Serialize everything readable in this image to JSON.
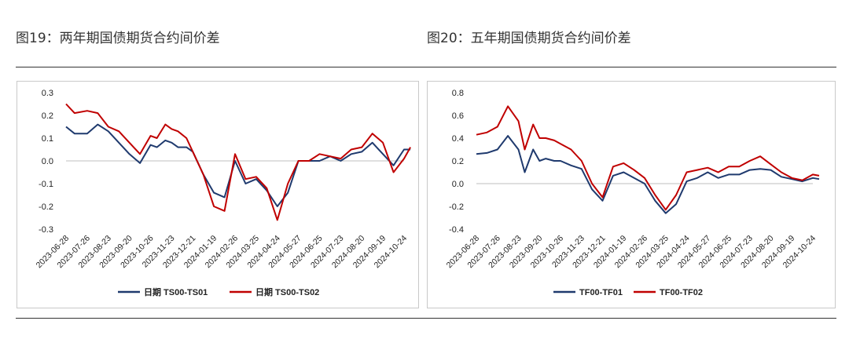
{
  "titles": {
    "left": "图19：两年期国债期货合约间价差",
    "right": "图20：五年期国债期货合约间价差"
  },
  "chart_data": [
    {
      "type": "line",
      "title": "图19：两年期国债期货合约间价差",
      "x_ticks": [
        "2023-06-28",
        "2023-07-26",
        "2023-08-23",
        "2023-09-20",
        "2023-10-26",
        "2023-11-23",
        "2023-12-21",
        "2024-01-19",
        "2024-02-26",
        "2024-03-25",
        "2024-04-24",
        "2024-05-27",
        "2024-06-25",
        "2024-07-23",
        "2024-08-20",
        "2024-09-19",
        "2024-10-24"
      ],
      "y_ticks": [
        "0.3",
        "0.2",
        "0.1",
        "0.0",
        "-0.1",
        "-0.2",
        "-0.3"
      ],
      "ylim": [
        -0.3,
        0.3
      ],
      "grid": false,
      "legend_position": "bottom",
      "series": [
        {
          "name": "日期 TS00-TS01",
          "color": "#1f3a6e",
          "x": [
            0,
            0.4,
            1,
            1.5,
            2,
            2.5,
            3,
            3.5,
            4,
            4.3,
            4.7,
            5,
            5.3,
            5.7,
            6,
            6.5,
            7,
            7.5,
            8,
            8.5,
            9,
            9.5,
            10,
            10.5,
            11,
            11.5,
            12,
            12.5,
            13,
            13.5,
            14,
            14.5,
            15,
            15.5,
            16,
            16.3
          ],
          "y": [
            0.15,
            0.12,
            0.12,
            0.16,
            0.13,
            0.08,
            0.03,
            -0.01,
            0.07,
            0.06,
            0.09,
            0.08,
            0.06,
            0.06,
            0.04,
            -0.06,
            -0.14,
            -0.16,
            0.0,
            -0.1,
            -0.08,
            -0.13,
            -0.2,
            -0.14,
            0.0,
            0.0,
            0.0,
            0.02,
            0.0,
            0.03,
            0.04,
            0.08,
            0.03,
            -0.02,
            0.05,
            0.05
          ]
        },
        {
          "name": "日期 TS00-TS02",
          "color": "#c00000",
          "x": [
            0,
            0.4,
            1,
            1.5,
            2,
            2.5,
            3,
            3.5,
            4,
            4.3,
            4.7,
            5,
            5.3,
            5.7,
            6,
            6.5,
            7,
            7.5,
            8,
            8.5,
            9,
            9.5,
            10,
            10.5,
            11,
            11.5,
            12,
            12.5,
            13,
            13.5,
            14,
            14.5,
            15,
            15.5,
            16,
            16.3
          ],
          "y": [
            0.25,
            0.21,
            0.22,
            0.21,
            0.15,
            0.13,
            0.08,
            0.03,
            0.11,
            0.1,
            0.16,
            0.14,
            0.13,
            0.1,
            0.04,
            -0.06,
            -0.2,
            -0.22,
            0.03,
            -0.08,
            -0.07,
            -0.12,
            -0.26,
            -0.1,
            0.0,
            0.0,
            0.03,
            0.02,
            0.01,
            0.05,
            0.06,
            0.12,
            0.08,
            -0.05,
            0.01,
            0.06
          ]
        }
      ]
    },
    {
      "type": "line",
      "title": "图20：五年期国债期货合约间价差",
      "x_ticks": [
        "2023-06-28",
        "2023-07-26",
        "2023-08-23",
        "2023-09-20",
        "2023-10-26",
        "2023-11-23",
        "2023-12-21",
        "2024-01-19",
        "2024-02-26",
        "2024-03-25",
        "2024-04-24",
        "2024-05-27",
        "2024-06-25",
        "2024-07-23",
        "2024-08-20",
        "2024-09-19",
        "2024-10-24"
      ],
      "y_ticks": [
        "0.8",
        "0.6",
        "0.4",
        "0.2",
        "0.0",
        "-0.2",
        "-0.4"
      ],
      "ylim": [
        -0.4,
        0.8
      ],
      "grid": false,
      "legend_position": "bottom",
      "series": [
        {
          "name": "TF00-TF01",
          "color": "#1f3a6e",
          "x": [
            0,
            0.5,
            1,
            1.5,
            2,
            2.3,
            2.7,
            3,
            3.3,
            3.7,
            4,
            4.5,
            5,
            5.5,
            6,
            6.5,
            7,
            7.5,
            8,
            8.5,
            9,
            9.5,
            10,
            10.5,
            11,
            11.5,
            12,
            12.5,
            13,
            13.5,
            14,
            14.5,
            15,
            15.5,
            16,
            16.3
          ],
          "y": [
            0.26,
            0.27,
            0.3,
            0.42,
            0.3,
            0.1,
            0.3,
            0.2,
            0.22,
            0.2,
            0.2,
            0.16,
            0.13,
            -0.05,
            -0.15,
            0.07,
            0.1,
            0.05,
            0.0,
            -0.15,
            -0.26,
            -0.18,
            0.02,
            0.05,
            0.1,
            0.05,
            0.08,
            0.08,
            0.12,
            0.13,
            0.12,
            0.06,
            0.04,
            0.02,
            0.05,
            0.04
          ]
        },
        {
          "name": "TF00-TF02",
          "color": "#c00000",
          "x": [
            0,
            0.5,
            1,
            1.5,
            2,
            2.3,
            2.7,
            3,
            3.3,
            3.7,
            4,
            4.5,
            5,
            5.5,
            6,
            6.5,
            7,
            7.5,
            8,
            8.5,
            9,
            9.5,
            10,
            10.5,
            11,
            11.5,
            12,
            12.5,
            13,
            13.5,
            14,
            14.5,
            15,
            15.5,
            16,
            16.3
          ],
          "y": [
            0.43,
            0.45,
            0.5,
            0.68,
            0.55,
            0.3,
            0.52,
            0.4,
            0.4,
            0.38,
            0.35,
            0.3,
            0.2,
            0.0,
            -0.12,
            0.15,
            0.18,
            0.12,
            0.05,
            -0.1,
            -0.23,
            -0.1,
            0.1,
            0.12,
            0.14,
            0.1,
            0.15,
            0.15,
            0.2,
            0.24,
            0.17,
            0.1,
            0.05,
            0.03,
            0.08,
            0.07
          ]
        }
      ]
    }
  ]
}
